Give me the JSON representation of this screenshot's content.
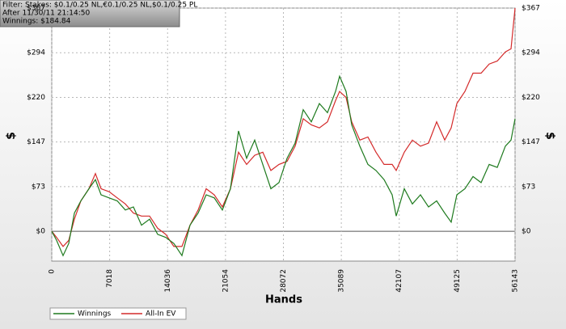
{
  "chart_data": {
    "type": "line",
    "annotations": [
      "Filter: Stakes: $0.1/0.25 NL,€0.1/0.25 NL,$0.1/0.25 PL",
      "After 11/30/11 21:14:50",
      "Winnings: $184.84"
    ],
    "xlabel": "Hands",
    "ylabel": "$",
    "x": [
      0,
      588,
      1372,
      2058,
      2743,
      3527,
      4507,
      5291,
      5977,
      6957,
      7937,
      8916,
      9896,
      10876,
      11856,
      12835,
      13815,
      14795,
      15775,
      16755,
      17734,
      18714,
      19694,
      20674,
      21654,
      22633,
      23613,
      24593,
      25573,
      26553,
      27532,
      28512,
      29492,
      30472,
      31452,
      32431,
      33411,
      34391,
      34881,
      35665,
      36351,
      37330,
      38310,
      39290,
      40270,
      41250,
      41740,
      42719,
      43699,
      44679,
      45659,
      46638,
      47618,
      48402,
      49088,
      50068,
      51048,
      52027,
      53007,
      53987,
      54967,
      55653,
      56143
    ],
    "series": [
      {
        "name": "Winnings",
        "color": "#1e7a1e",
        "values": [
          0,
          -15,
          -40,
          -20,
          30,
          50,
          70,
          85,
          60,
          55,
          50,
          35,
          40,
          10,
          20,
          -5,
          -10,
          -20,
          -40,
          10,
          30,
          60,
          55,
          35,
          70,
          165,
          120,
          150,
          110,
          70,
          80,
          120,
          145,
          200,
          180,
          210,
          195,
          230,
          255,
          230,
          175,
          140,
          110,
          100,
          85,
          60,
          25,
          70,
          45,
          60,
          40,
          50,
          30,
          15,
          60,
          70,
          90,
          80,
          110,
          105,
          140,
          150,
          185
        ]
      },
      {
        "name": "All-In EV",
        "color": "#d42a2a",
        "values": [
          0,
          -10,
          -25,
          -15,
          20,
          50,
          70,
          95,
          70,
          65,
          55,
          45,
          30,
          25,
          25,
          5,
          -5,
          -25,
          -25,
          10,
          35,
          70,
          60,
          40,
          70,
          130,
          110,
          125,
          130,
          100,
          110,
          115,
          140,
          185,
          175,
          170,
          180,
          215,
          230,
          220,
          180,
          150,
          155,
          130,
          110,
          110,
          100,
          130,
          150,
          140,
          145,
          180,
          150,
          170,
          210,
          230,
          260,
          260,
          275,
          280,
          295,
          300,
          367
        ]
      }
    ],
    "xlim": [
      0,
      56143
    ],
    "xticks": [
      0,
      7018,
      14036,
      21054,
      28072,
      35089,
      42107,
      49125,
      56143
    ],
    "ylim": [
      -49,
      367
    ],
    "yticks": [
      {
        "value": 0,
        "label": "$0"
      },
      {
        "value": 73.4,
        "label": "$73"
      },
      {
        "value": 146.8,
        "label": "$147"
      },
      {
        "value": 220.2,
        "label": "$220"
      },
      {
        "value": 293.6,
        "label": "$294"
      },
      {
        "value": 367,
        "label": "$367"
      }
    ],
    "grid": true
  }
}
